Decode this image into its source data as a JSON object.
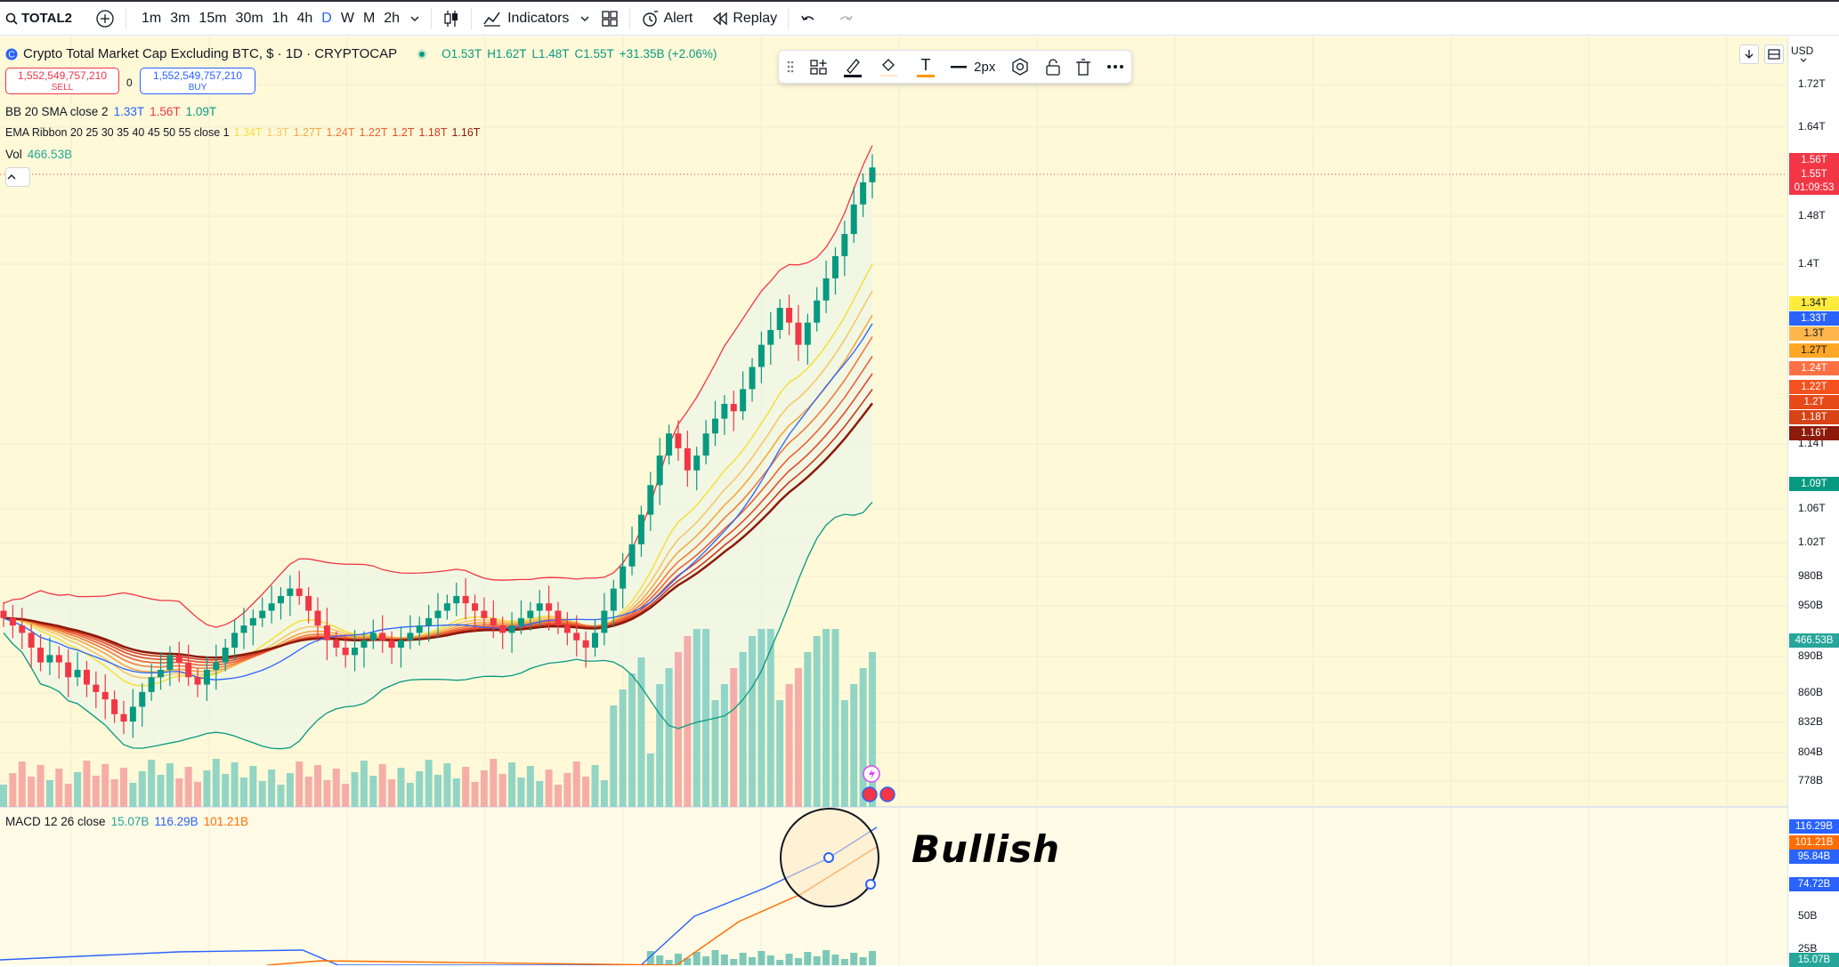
{
  "toolbar": {
    "symbol": "TOTAL2",
    "timeframes": [
      "1m",
      "3m",
      "15m",
      "30m",
      "1h",
      "4h",
      "D",
      "W",
      "M",
      "2h"
    ],
    "active_timeframe": "D",
    "indicators_label": "Indicators",
    "alert_label": "Alert",
    "replay_label": "Replay"
  },
  "legend": {
    "title": "Crypto Total Market Cap Excluding BTC, $ · 1D · CRYPTOCAP",
    "o": "O1.53T",
    "h": "H1.62T",
    "l": "L1.48T",
    "c": "C1.55T",
    "change": "+31.35B (+2.06%)",
    "sell_price": "1,552,549,757,210",
    "sell_label": "SELL",
    "spread": "0",
    "buy_price": "1,552,549,757,210",
    "buy_label": "BUY",
    "bb": {
      "name": "BB 20 SMA close 2",
      "v1": "1.33T",
      "v2": "1.56T",
      "v3": "1.09T"
    },
    "ema": {
      "name": "EMA Ribbon 20 25 30 35 40 45 50 55 close 1",
      "values": [
        "1.34T",
        "1.3T",
        "1.27T",
        "1.24T",
        "1.22T",
        "1.2T",
        "1.18T",
        "1.16T"
      ]
    },
    "vol": {
      "name": "Vol",
      "value": "466.53B"
    },
    "macd": {
      "name": "MACD 12 26 close",
      "v1": "15.07B",
      "v2": "116.29B",
      "v3": "101.21B"
    }
  },
  "drawing_toolbar": {
    "width_label": "2px"
  },
  "annotation": {
    "text": "Bullish"
  },
  "price_axis": {
    "currency": "USD",
    "ticks": [
      "1.72T",
      "1.64T",
      "1.48T",
      "1.4T",
      "1.14T",
      "1.06T",
      "1.02T",
      "980B",
      "950B",
      "890B",
      "860B",
      "832B",
      "804B",
      "778B"
    ],
    "macd_ticks": [
      "50B",
      "25B"
    ],
    "labels": [
      {
        "text": "1.56T",
        "color": "#f23645"
      },
      {
        "text": "1.55T",
        "color": "#f23645"
      },
      {
        "text": "01:09:53",
        "color": "#f23645"
      },
      {
        "text": "1.34T",
        "color": "#ffeb3b"
      },
      {
        "text": "1.33T",
        "color": "#2962ff"
      },
      {
        "text": "1.3T",
        "color": "#ffb74d"
      },
      {
        "text": "1.27T",
        "color": "#ffa726"
      },
      {
        "text": "1.24T",
        "color": "#ff7043"
      },
      {
        "text": "1.22T",
        "color": "#f4511e"
      },
      {
        "text": "1.2T",
        "color": "#e64a19"
      },
      {
        "text": "1.18T",
        "color": "#d84315"
      },
      {
        "text": "1.16T",
        "color": "#8d1a0a"
      },
      {
        "text": "1.09T",
        "color": "#089981"
      },
      {
        "text": "466.53B",
        "color": "#26a69a"
      },
      {
        "text": "116.29B",
        "color": "#2962ff"
      },
      {
        "text": "101.21B",
        "color": "#ff6d00"
      },
      {
        "text": "95.84B",
        "color": "#2962ff"
      },
      {
        "text": "74.72B",
        "color": "#2962ff"
      },
      {
        "text": "15.07B",
        "color": "#26a69a"
      }
    ]
  },
  "chart_data": {
    "type": "candlestick",
    "title": "Crypto Total Market Cap Excluding BTC, $ · 1D · CRYPTOCAP",
    "unit": "T",
    "closes": [
      0.94,
      0.93,
      0.92,
      0.9,
      0.88,
      0.89,
      0.88,
      0.86,
      0.87,
      0.85,
      0.84,
      0.83,
      0.81,
      0.8,
      0.82,
      0.84,
      0.86,
      0.87,
      0.89,
      0.88,
      0.86,
      0.85,
      0.87,
      0.88,
      0.9,
      0.92,
      0.93,
      0.94,
      0.95,
      0.96,
      0.97,
      0.98,
      0.97,
      0.95,
      0.93,
      0.91,
      0.9,
      0.89,
      0.9,
      0.91,
      0.92,
      0.91,
      0.9,
      0.91,
      0.92,
      0.93,
      0.94,
      0.95,
      0.96,
      0.97,
      0.96,
      0.95,
      0.94,
      0.93,
      0.92,
      0.93,
      0.94,
      0.95,
      0.96,
      0.95,
      0.93,
      0.92,
      0.91,
      0.9,
      0.92,
      0.95,
      0.98,
      1.01,
      1.04,
      1.08,
      1.12,
      1.16,
      1.19,
      1.17,
      1.14,
      1.16,
      1.19,
      1.21,
      1.23,
      1.22,
      1.25,
      1.28,
      1.31,
      1.33,
      1.36,
      1.34,
      1.31,
      1.34,
      1.37,
      1.4,
      1.43,
      1.46,
      1.5,
      1.53,
      1.55
    ],
    "ema_values": [
      "1.34T",
      "1.3T",
      "1.27T",
      "1.24T",
      "1.22T",
      "1.2T",
      "1.18T",
      "1.16T"
    ],
    "bb": {
      "basis": 1.33,
      "upper": 1.56,
      "lower": 1.09
    }
  }
}
